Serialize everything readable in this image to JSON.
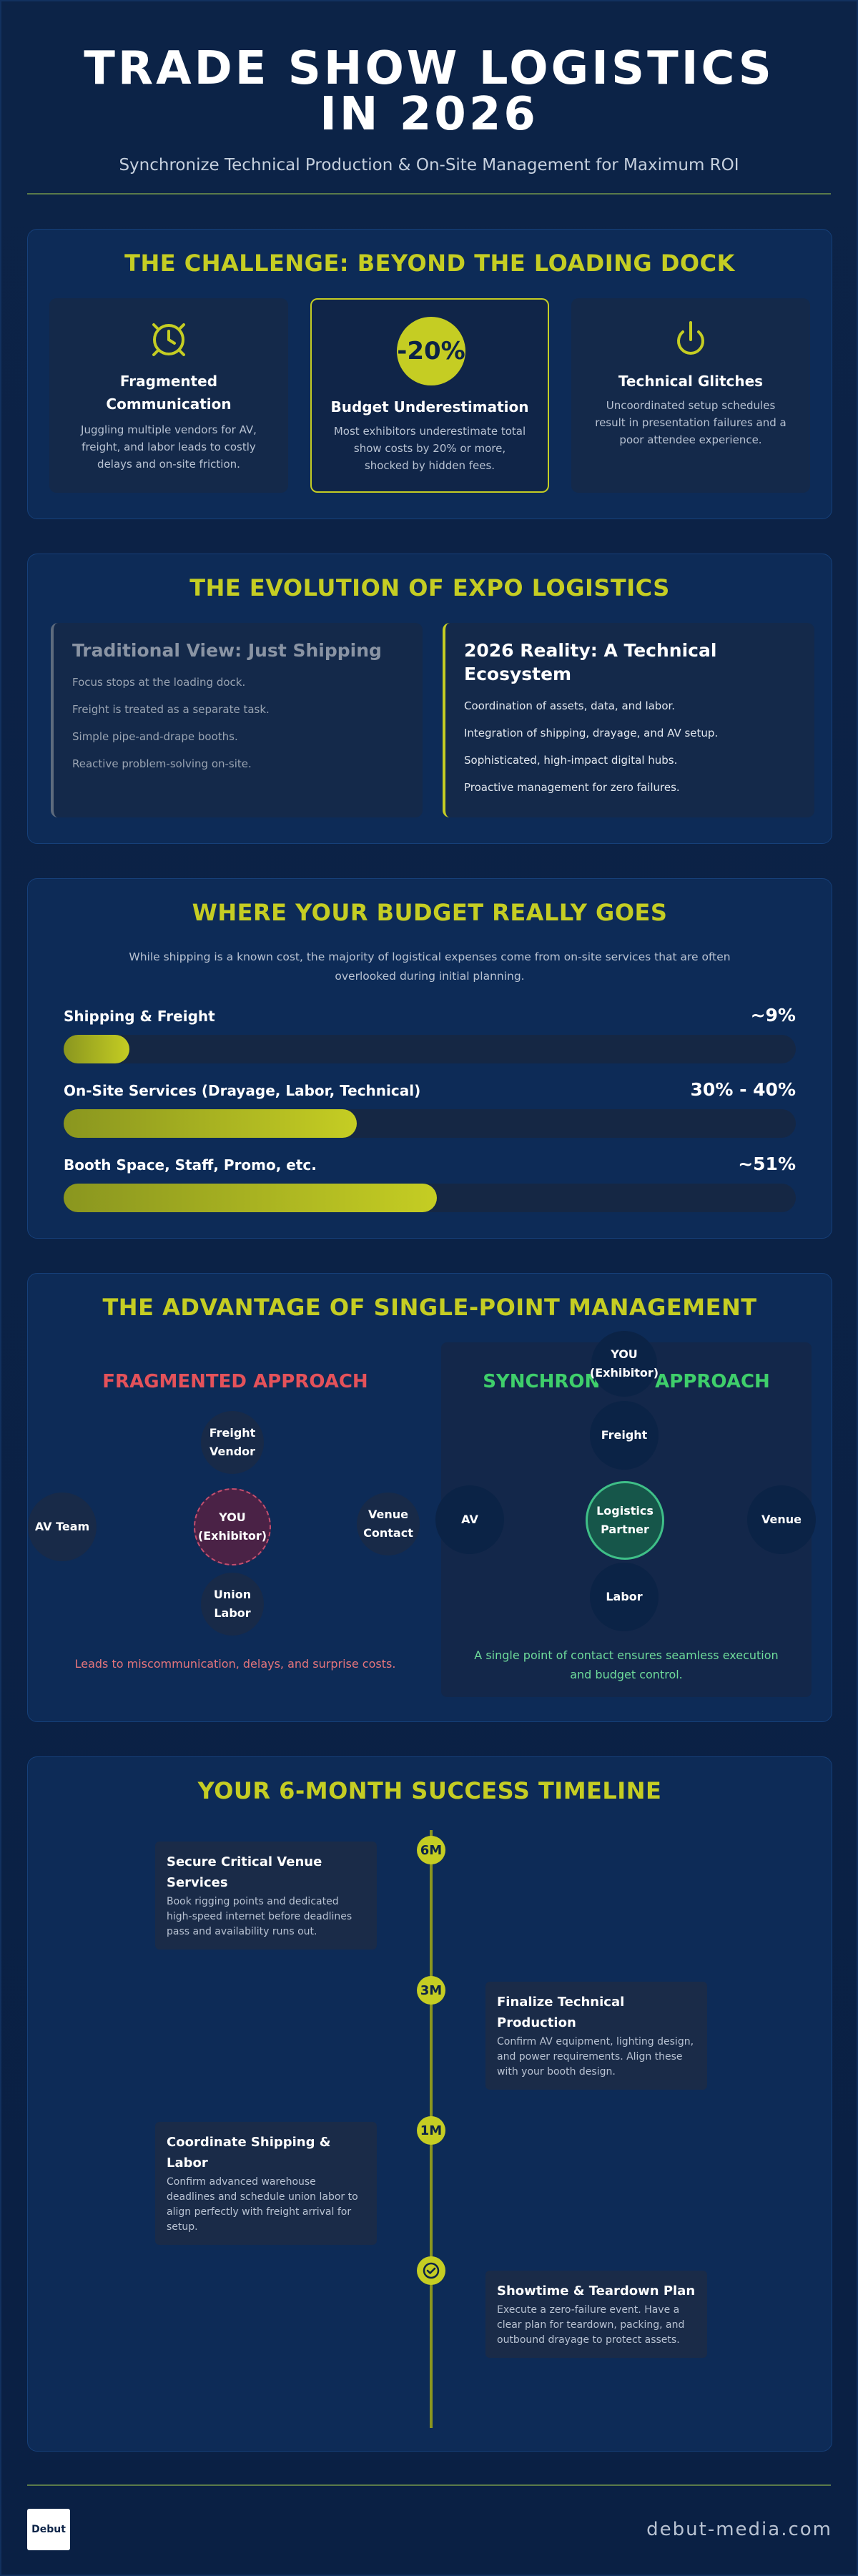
{
  "header": {
    "title": "TRADE SHOW LOGISTICS IN 2026",
    "subtitle": "Synchronize Technical Production & On-Site Management for Maximum ROI"
  },
  "challenge": {
    "title": "THE CHALLENGE: BEYOND THE LOADING DOCK",
    "items": [
      {
        "icon": "clock-icon",
        "title": "Fragmented Communication",
        "body": "Juggling multiple vendors for AV, freight, and labor leads to costly delays and on-site friction."
      },
      {
        "badge": "-20%",
        "title": "Budget Underestimation",
        "body": "Most exhibitors underestimate total show costs by 20% or more, shocked by hidden fees."
      },
      {
        "icon": "power-icon",
        "title": "Technical Glitches",
        "body": "Uncoordinated setup schedules result in presentation failures and a poor attendee experience."
      }
    ]
  },
  "evolution": {
    "title": "THE EVOLUTION OF EXPO LOGISTICS",
    "old": {
      "title": "Traditional View: Just Shipping",
      "points": [
        "Focus stops at the loading dock.",
        "Freight is treated as a separate task.",
        "Simple pipe-and-drape booths.",
        "Reactive problem-solving on-site."
      ]
    },
    "new": {
      "title": "2026 Reality: A Technical Ecosystem",
      "points": [
        "Coordination of assets, data, and labor.",
        "Integration of shipping, drayage, and AV setup.",
        "Sophisticated, high-impact digital hubs.",
        "Proactive management for zero failures."
      ]
    }
  },
  "budget": {
    "title": "WHERE YOUR BUDGET REALLY GOES",
    "intro": "While shipping is a known cost, the majority of logistical expenses come from on-site services that are often overlooked during initial planning.",
    "rows": [
      {
        "label": "Shipping & Freight",
        "value": "~9%",
        "fill": 0.09
      },
      {
        "label": "On-Site Services (Drayage, Labor, Technical)",
        "value": "30% - 40%",
        "fill": 0.4
      },
      {
        "label": "Booth Space, Staff, Promo, etc.",
        "value": "~51%",
        "fill": 0.51
      }
    ]
  },
  "advantage": {
    "title": "THE ADVANTAGE OF SINGLE-POINT MANAGEMENT",
    "fragmented": {
      "title": "FRAGMENTED APPROACH",
      "center": "YOU (Exhibitor)",
      "nodes": [
        "Freight Vendor",
        "AV Team",
        "Venue Contact",
        "Union Labor"
      ],
      "note": "Leads to miscommunication, delays, and surprise costs."
    },
    "synchronized": {
      "title": "SYNCHRONIZED APPROACH",
      "top": "YOU (Exhibitor)",
      "center": "Logistics Partner",
      "nodes": [
        "Freight",
        "AV",
        "Venue",
        "Labor"
      ],
      "note": "A single point of contact ensures seamless execution and budget control."
    }
  },
  "timeline": {
    "title": "YOUR 6-MONTH SUCCESS TIMELINE",
    "steps": [
      {
        "marker": "6M",
        "title": "Secure Critical Venue Services",
        "body": "Book rigging points and dedicated high-speed internet before deadlines pass and availability runs out."
      },
      {
        "marker": "3M",
        "title": "Finalize Technical Production",
        "body": "Confirm AV equipment, lighting design, and power requirements. Align these with your booth design."
      },
      {
        "marker": "1M",
        "title": "Coordinate Shipping & Labor",
        "body": "Confirm advanced warehouse deadlines and schedule union labor to align perfectly with freight arrival for setup."
      },
      {
        "marker_icon": "check-circle-icon",
        "title": "Showtime & Teardown Plan",
        "body": "Execute a zero-failure event. Have a clear plan for teardown, packing, and outbound drayage to protect assets."
      }
    ]
  },
  "footer": {
    "logo": "Debut",
    "site": "debut-media.com"
  },
  "colors": {
    "accent": "#c5cd23",
    "danger": "#e4525a",
    "success": "#3fcf6b",
    "background": "#0c2347"
  }
}
